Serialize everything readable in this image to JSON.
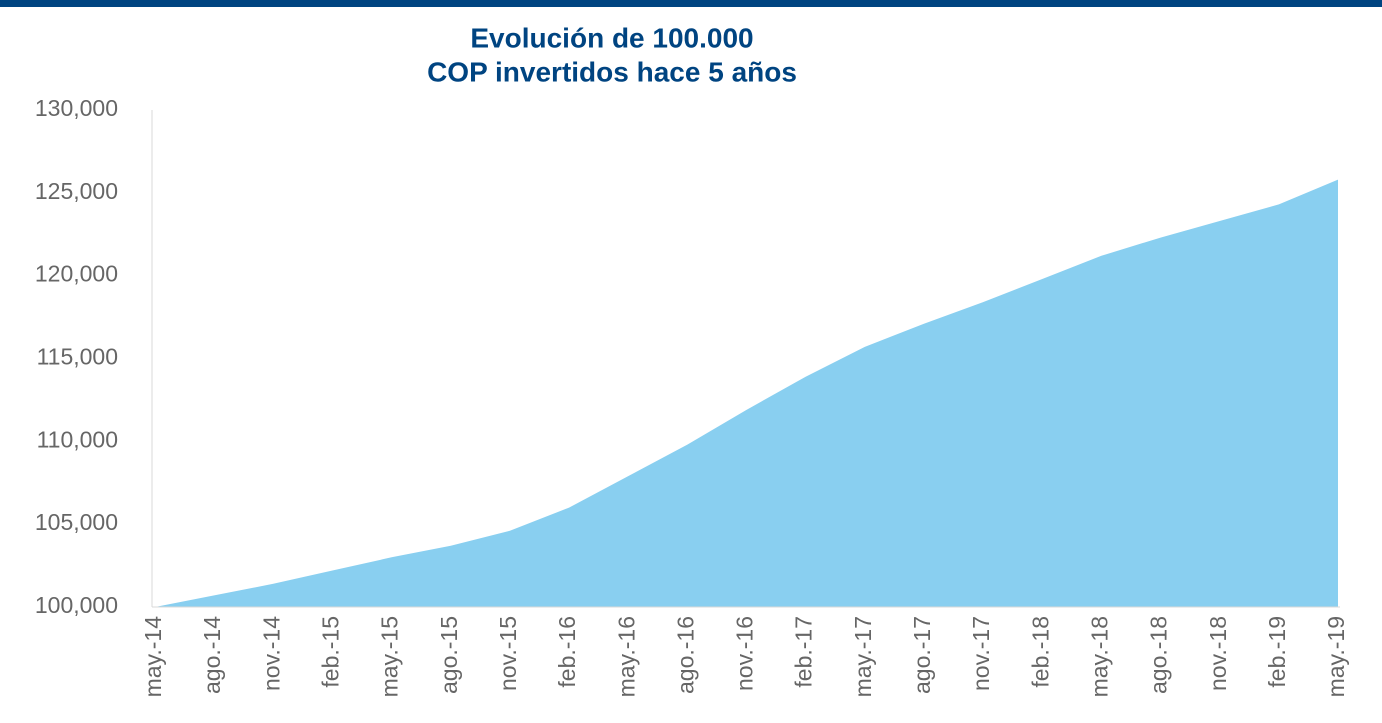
{
  "chart_data": {
    "type": "area",
    "title": [
      "Evolución de 100.000",
      "COP invertidos hace 5 años"
    ],
    "categories": [
      "may.-14",
      "ago.-14",
      "nov.-14",
      "feb.-15",
      "may.-15",
      "ago.-15",
      "nov.-15",
      "feb.-16",
      "may.-16",
      "ago.-16",
      "nov.-16",
      "feb.-17",
      "may.-17",
      "ago.-17",
      "nov.-17",
      "feb.-18",
      "may.-18",
      "ago.-18",
      "nov.-18",
      "feb.-19",
      "may.-19"
    ],
    "values": [
      100000,
      100700,
      101400,
      102200,
      103000,
      103700,
      104600,
      106000,
      107900,
      109800,
      111900,
      113900,
      115700,
      117100,
      118400,
      119800,
      121200,
      122300,
      123300,
      124300,
      125800
    ],
    "color": "#89cff0",
    "ylim": [
      100000,
      130000
    ],
    "yticks": [
      {
        "value": 100000,
        "label": "100,000"
      },
      {
        "value": 105000,
        "label": "105,000"
      },
      {
        "value": 110000,
        "label": "110,000"
      },
      {
        "value": 115000,
        "label": "115,000"
      },
      {
        "value": 120000,
        "label": "120,000"
      },
      {
        "value": 125000,
        "label": "125,000"
      },
      {
        "value": 130000,
        "label": "130,000"
      }
    ],
    "grid": false
  }
}
